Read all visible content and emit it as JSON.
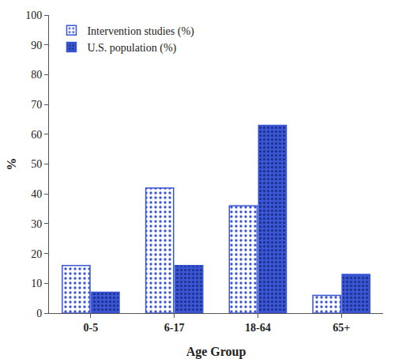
{
  "chart_data": {
    "type": "bar",
    "x_label": "Age Group",
    "y_label": "%",
    "categories": [
      "0-5",
      "6-17",
      "18-64",
      "65+"
    ],
    "series": [
      {
        "name": "Intervention studies (%)",
        "color": "#3a56d4",
        "marker": "dotted_light",
        "values": [
          16,
          42,
          36,
          6
        ]
      },
      {
        "name": "U.S. population (%)",
        "color": "#3a56d4",
        "marker": "dotted_dark",
        "values": [
          7,
          16,
          63,
          13
        ]
      }
    ],
    "ylim": [
      0,
      100
    ],
    "yticks": [
      0,
      10,
      20,
      30,
      40,
      50,
      60,
      70,
      80,
      90,
      100
    ],
    "grid": false,
    "legend": "upper left"
  }
}
